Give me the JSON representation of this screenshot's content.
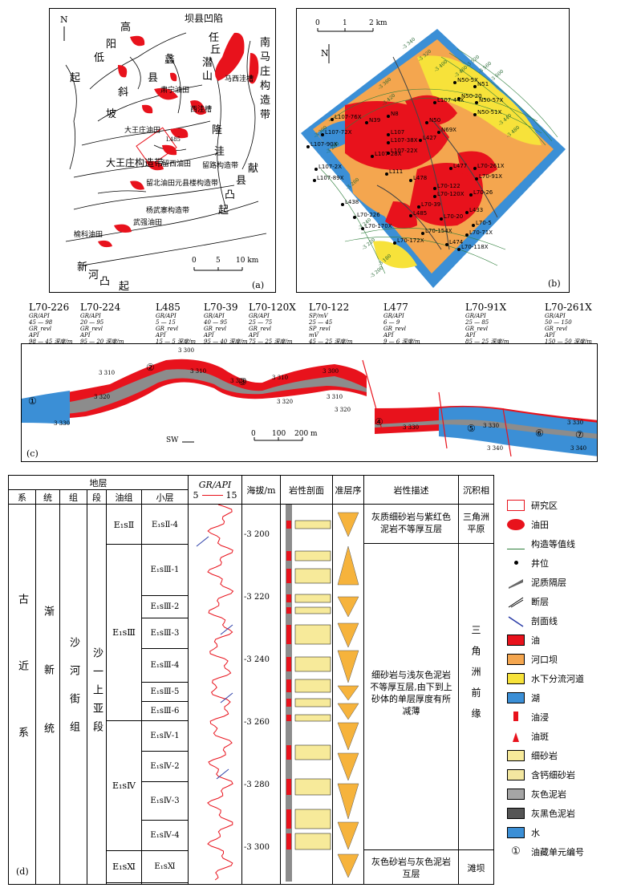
{
  "panel_a": {
    "tag": "(a)",
    "north": "N",
    "labels": {
      "gao": "高",
      "yang": "阳",
      "di": "低",
      "qi1": "起",
      "li": "蠡",
      "xian": "县",
      "xie": "斜",
      "po": "坡",
      "baxian": "坝县凹陷",
      "ren": "任",
      "qiu": "丘",
      "qian": "潜",
      "shan": "山",
      "nan": "南",
      "ma": "马",
      "zhuang": "庄",
      "gou": "构",
      "zao": "造",
      "dai": "带",
      "maxiwa": "马西洼槽",
      "suning": "肃宁油田",
      "xiwa": "西洼槽",
      "dawangzhuang_oil": "大王庄油田",
      "dawangzhuang_belt": "大王庄构造带",
      "liuxi": "留西油田",
      "liulu": "留路构造带",
      "yuanjie": "留北油田元县楼构造带",
      "yangwu": "杨武寨构造带",
      "wuqiang": "武强油田",
      "yuke": "榆科油田",
      "xin": "新",
      "he": "河",
      "tu": "凸",
      "qi2": "起",
      "long": "隆",
      "wa": "洼",
      "xianxian": "县",
      "xian2": "献",
      "tu2": "凸",
      "qi3": "起",
      "well_l485": "L485"
    },
    "scale": {
      "zero": "0",
      "five": "5",
      "ten": "10 km"
    }
  },
  "panel_b": {
    "tag": "(b)",
    "north": "N",
    "scale": {
      "zero": "0",
      "one": "1",
      "two": "2 km"
    },
    "wells": [
      "L107-76X",
      "N39",
      "L107-72X",
      "N8",
      "L107-44X",
      "N50-5X",
      "N51",
      "N50-20",
      "N50-57X",
      "N50-51X",
      "L107-90X",
      "L107",
      "L107-38X",
      "N50",
      "N69X",
      "L107-28X",
      "L107-22X",
      "L427",
      "L107-2X",
      "L111",
      "L478",
      "L477",
      "L70-261X",
      "L107-89X",
      "L70-122",
      "L70-91X",
      "L70-120X",
      "L70-26",
      "L438",
      "L70-39",
      "L485",
      "L433",
      "L70-226",
      "L70-20",
      "L70-5",
      "L70-170X",
      "L70-154X",
      "L70-71X",
      "L70-172X",
      "L474",
      "L70-118X"
    ],
    "contours": [
      "-3 340",
      "-3 320",
      "-3 400",
      "-3 460",
      "-3 520",
      "-3 560",
      "-3 600",
      "-3 380",
      "-3 420",
      "-3 440",
      "-3 480",
      "-3 300",
      "-3 280",
      "-3 260",
      "-3 240",
      "-3 220",
      "-3 180",
      "-3 200"
    ]
  },
  "panel_c": {
    "tag": "(c)",
    "wells": [
      {
        "name": "L70-226",
        "curve1": "GR/API",
        "r1": "45 — 98",
        "curve2": "GR_revl",
        "r2": "98 — 45",
        "unit": "API",
        "depth": "深度/m"
      },
      {
        "name": "L70-224",
        "curve1": "GR/API",
        "r1": "20 — 95",
        "curve2": "GR_revl",
        "r2": "95 — 20",
        "unit": "API",
        "depth": "深度/m"
      },
      {
        "name": "L485",
        "curve1": "GR/API",
        "r1": "5 — 15",
        "curve2": "GR_revl",
        "r2": "15 — 5",
        "unit": "API",
        "depth": "深度/m"
      },
      {
        "name": "L70-39",
        "curve1": "GR/API",
        "r1": "40 — 95",
        "curve2": "GR_revl",
        "r2": "95 — 40",
        "unit": "API",
        "depth": "深度/m"
      },
      {
        "name": "L70-120X",
        "curve1": "GR/API",
        "r1": "25 — 75",
        "curve2": "GR_revl",
        "r2": "75 — 25",
        "unit": "API",
        "depth": "深度/m"
      },
      {
        "name": "L70-122",
        "curve1": "SP/mV",
        "r1": "25 — 45",
        "curve2": "SP_revl",
        "r2": "45 — 25",
        "unit": "mV",
        "depth": "深度/m"
      },
      {
        "name": "L477",
        "curve1": "GR/API",
        "r1": "6 — 9",
        "curve2": "GR_revl",
        "r2": "9 — 6",
        "unit": "API",
        "depth": "深度/m"
      },
      {
        "name": "L70-91X",
        "curve1": "GR/API",
        "r1": "25 — 85",
        "curve2": "GR_revl",
        "r2": "85 — 25",
        "unit": "API",
        "depth": "深度/m"
      },
      {
        "name": "L70-261X",
        "curve1": "GR/API",
        "r1": "50 — 150",
        "curve2": "GR_revl",
        "r2": "150 — 50",
        "unit": "API",
        "depth": "深度/m"
      }
    ],
    "depths": [
      "3 310",
      "3 320",
      "3 330",
      "3 300",
      "3 310",
      "3 320",
      "3 310",
      "3 320",
      "3 300",
      "3 310",
      "3 320",
      "3 330",
      "3 330",
      "3 340",
      "3 330",
      "3 340"
    ],
    "units": [
      "①",
      "②",
      "③",
      "④",
      "⑤",
      "⑥",
      "⑦"
    ],
    "scale": {
      "zero": "0",
      "hundred": "100",
      "twohundred": "200 m"
    },
    "direction": "SW"
  },
  "panel_d": {
    "tag": "(d)",
    "headers": {
      "stratum": "地层",
      "xi": "系",
      "tong": "统",
      "zu": "组",
      "duan": "段",
      "youzu": "油组",
      "xiaoceng": "小层",
      "gr": "GR/API",
      "gr_min": "5",
      "gr_max": "15",
      "elev": "海拔/m",
      "litho": "岩性剖面",
      "zhunceng": "准层序",
      "desc": "岩性描述",
      "facies": "沉积相"
    },
    "xi_val": "古近系",
    "tong_val": "渐新统",
    "zu_val": "沙河街组",
    "duan_val": "沙一上亚段",
    "youzu": [
      "E₁sⅡ",
      "E₁sⅢ",
      "E₁sⅣ",
      "E₁sⅪ"
    ],
    "xiaoceng": [
      "E₁sⅡ-4",
      "E₁sⅢ-1",
      "E₁sⅢ-2",
      "E₁sⅢ-3",
      "E₁sⅢ-4",
      "E₁sⅢ-5",
      "E₁sⅢ-6",
      "E₁sⅣ-1",
      "E₁sⅣ-2",
      "E₁sⅣ-3",
      "E₁sⅣ-4",
      "E₁sⅪ"
    ],
    "elevations": [
      "-3 200",
      "-3 220",
      "-3 240",
      "-3 260",
      "-3 280",
      "-3 300"
    ],
    "descriptions": [
      "灰质细砂岩与紫红色泥岩不等厚互层",
      "细砂岩与浅灰色泥岩不等厚互层,由下到上砂体的单层厚度有所减薄",
      "灰色砂岩与灰色泥岩互层"
    ],
    "facies": [
      "三角洲平原",
      "三角洲前缘",
      "滩坝"
    ]
  },
  "legend": [
    {
      "label": "研究区",
      "icon": "rect-outline"
    },
    {
      "label": "油田",
      "icon": "red-blob"
    },
    {
      "label": "构造等值线",
      "icon": "contour"
    },
    {
      "label": "井位",
      "icon": "dot"
    },
    {
      "label": "泥质隔层",
      "icon": "gray-band"
    },
    {
      "label": "断层",
      "icon": "fault"
    },
    {
      "label": "剖面线",
      "icon": "line"
    },
    {
      "label": "油",
      "icon": "red"
    },
    {
      "label": "河口坝",
      "icon": "orange"
    },
    {
      "label": "水下分流河道",
      "icon": "yellow"
    },
    {
      "label": "湖",
      "icon": "blue"
    },
    {
      "label": "油浸",
      "icon": "oil-soak"
    },
    {
      "label": "油斑",
      "icon": "oil-spot"
    },
    {
      "label": "细砂岩",
      "icon": "sand"
    },
    {
      "label": "含钙细砂岩",
      "icon": "calc-sand"
    },
    {
      "label": "灰色泥岩",
      "icon": "gray-mud"
    },
    {
      "label": "灰黑色泥岩",
      "icon": "dark-mud"
    },
    {
      "label": "水",
      "icon": "water"
    },
    {
      "label": "油藏单元编号",
      "icon": "circle-1",
      "symbol": "①"
    }
  ],
  "colors": {
    "oil": "#e8121c",
    "bar": "#f4a64f",
    "channel": "#f7e23a",
    "lake": "#3b8fd6",
    "mud": "#8c8c8c"
  }
}
